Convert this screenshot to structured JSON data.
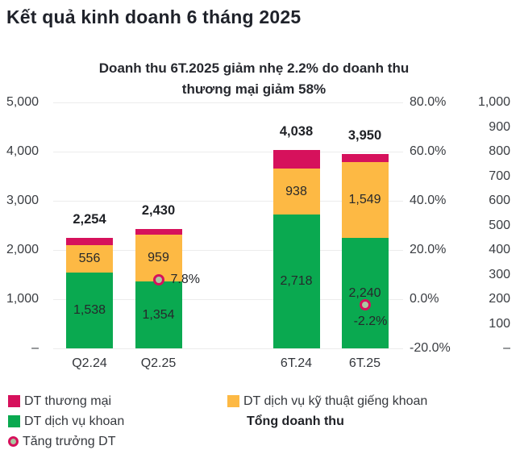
{
  "header": {
    "title": "Kết quả kinh doanh 6 tháng 2025"
  },
  "chart_data": {
    "type": "bar",
    "subtype": "stacked-columns-with-growth-markers",
    "title": "Doanh thu 6T.2025 giảm nhẹ 2.2% do doanh thu thương mại giảm 58%",
    "title_lines": [
      "Doanh thu 6T.2025 giảm nhẹ 2.2% do doanh thu",
      "thương mại giảm 58%"
    ],
    "categories": [
      "Q2.24",
      "Q2.25",
      "6T.24",
      "6T.25"
    ],
    "series": [
      {
        "name": "DT dịch vụ khoan",
        "color": "#0aa950",
        "values": [
          1538,
          1354,
          2718,
          2240
        ],
        "labels": [
          "1,538",
          "1,354",
          "2,718",
          "2,240"
        ]
      },
      {
        "name": "DT dịch vụ kỹ thuật giếng khoan",
        "color": "#fdb944",
        "values": [
          556,
          959,
          938,
          1549
        ],
        "labels": [
          "556",
          "959",
          "938",
          "1,549"
        ]
      },
      {
        "name": "DT thương mại",
        "color": "#d6115c",
        "values": [
          160,
          117,
          382,
          161
        ],
        "labels": [
          "",
          "",
          "",
          ""
        ]
      }
    ],
    "totals": {
      "name": "Tổng doanh thu",
      "values": [
        2254,
        2430,
        4038,
        3950
      ],
      "labels": [
        "2,254",
        "2,430",
        "4,038",
        "3,950"
      ]
    },
    "growth": {
      "name": "Tăng trưởng DT",
      "marker_fill": "#abc7a2",
      "marker_ring": "#d6115c",
      "points": [
        {
          "category_index": 1,
          "value": 7.8,
          "label": "7.8%",
          "label_position": "right"
        },
        {
          "category_index": 3,
          "value": -2.2,
          "label": "-2.2%",
          "label_position": "below"
        }
      ]
    },
    "axes": {
      "left": {
        "min": 0,
        "max": 5000,
        "ticks": [
          "5,000",
          "4,000",
          "3,000",
          "2,000",
          "1,000",
          "–"
        ]
      },
      "right_pct": {
        "min": -20,
        "max": 80,
        "ticks": [
          "80.0%",
          "60.0%",
          "40.0%",
          "20.0%",
          "0.0%",
          "-20.0%"
        ]
      },
      "far_right": {
        "min": 0,
        "max": 1000,
        "ticks": [
          "1,000",
          "900",
          "800",
          "700",
          "600",
          "500",
          "400",
          "300",
          "200",
          "100",
          "–"
        ]
      }
    },
    "grid": true,
    "legend_position": "bottom"
  },
  "legend": {
    "left": [
      {
        "swatch": "square",
        "color": "#d6115c",
        "label": "DT thương mại"
      },
      {
        "swatch": "square",
        "color": "#0aa950",
        "label": "DT dịch vụ khoan"
      },
      {
        "swatch": "ring",
        "color": "#d6115c",
        "label": "Tăng trưởng DT"
      }
    ],
    "right": [
      {
        "swatch": "square",
        "color": "#fdb944",
        "label": "DT dịch vụ kỹ thuật giếng khoan"
      },
      {
        "swatch": "none",
        "bold": true,
        "label": "Tổng doanh thu"
      }
    ]
  }
}
